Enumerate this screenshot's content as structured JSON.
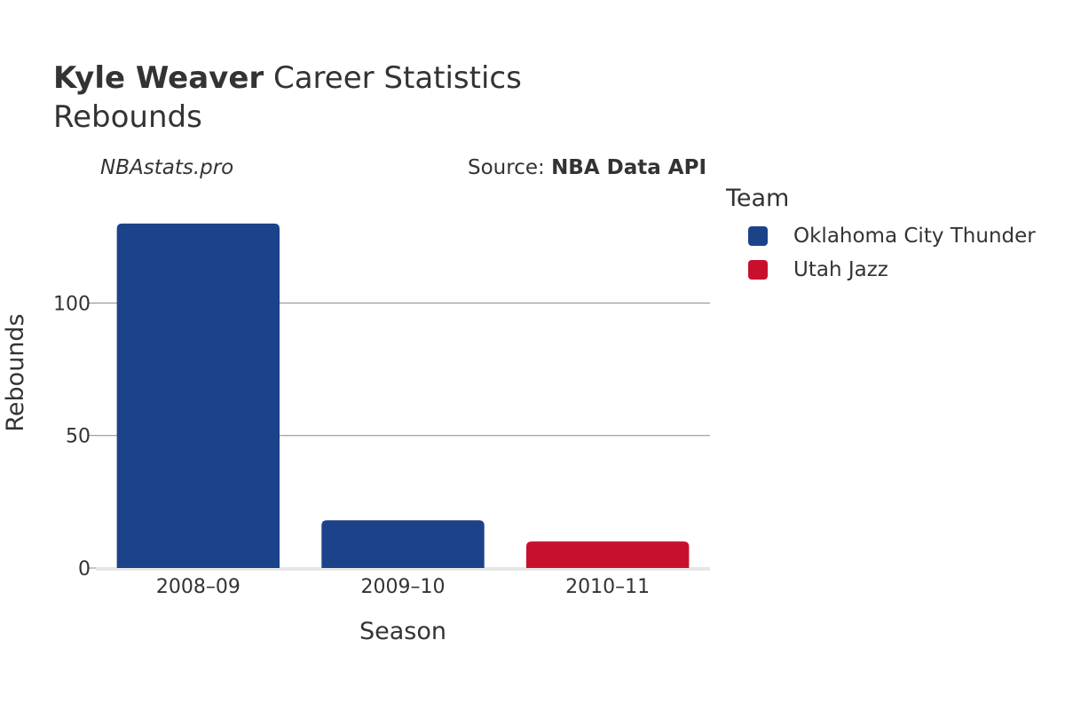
{
  "header": {
    "player": "Kyle Weaver",
    "title_rest": " Career Statistics",
    "subtitle": "Rebounds",
    "site": "NBAstats.pro",
    "source_prefix": "Source: ",
    "source_name": "NBA Data API"
  },
  "legend": {
    "title": "Team",
    "items": [
      {
        "label": "Oklahoma City Thunder",
        "color": "#1c428a"
      },
      {
        "label": "Utah Jazz",
        "color": "#c8102e"
      }
    ]
  },
  "chart_data": {
    "type": "bar",
    "categories": [
      "2008–09",
      "2009–10",
      "2010–11"
    ],
    "series": [
      {
        "name": "Oklahoma City Thunder",
        "color": "#1c428a",
        "values": [
          130,
          18,
          null
        ]
      },
      {
        "name": "Utah Jazz",
        "color": "#c8102e",
        "values": [
          null,
          null,
          10
        ]
      }
    ],
    "xlabel": "Season",
    "ylabel": "Rebounds",
    "yticks": [
      0,
      50,
      100
    ],
    "ylim": [
      0,
      140
    ],
    "grid": true,
    "legend_position": "right"
  }
}
